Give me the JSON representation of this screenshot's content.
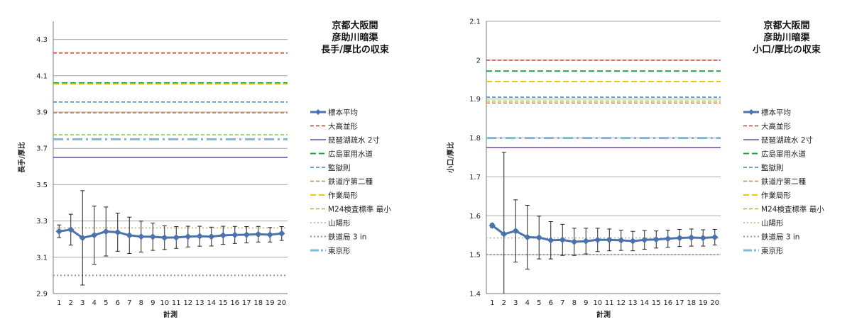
{
  "chart_data": [
    {
      "type": "line",
      "title_lines": [
        "京都大阪間",
        "彦助川暗渠",
        "長手/厚比の収束"
      ],
      "xlabel": "計測",
      "ylabel": "長手/厚比",
      "x": [
        1,
        2,
        3,
        4,
        5,
        6,
        7,
        8,
        9,
        10,
        11,
        12,
        13,
        14,
        15,
        16,
        17,
        18,
        19,
        20
      ],
      "ylim": [
        2.9,
        4.4
      ],
      "yticks": [
        "2.9",
        "3.1",
        "3.3",
        "3.5",
        "3.7",
        "3.9",
        "4.1",
        "4.3"
      ],
      "grid": true,
      "legend_position": "right",
      "series": [
        {
          "name": "標本平均",
          "color": "#4a72ad",
          "style": "marker-line",
          "values": [
            3.243,
            3.252,
            3.207,
            3.222,
            3.242,
            3.238,
            3.221,
            3.214,
            3.213,
            3.208,
            3.209,
            3.214,
            3.216,
            3.214,
            3.221,
            3.223,
            3.224,
            3.227,
            3.224,
            3.231
          ],
          "errors": [
            0.035,
            0.085,
            0.26,
            0.16,
            0.135,
            0.105,
            0.1,
            0.085,
            0.075,
            0.065,
            0.06,
            0.057,
            0.055,
            0.052,
            0.05,
            0.047,
            0.045,
            0.043,
            0.04,
            0.038
          ]
        },
        {
          "name": "大高並形",
          "color": "#c0392b",
          "style": "dashed",
          "value": 4.225
        },
        {
          "name": "琵琶湖疏水 2寸",
          "color": "#6a4a9c",
          "style": "solid",
          "value": 3.65
        },
        {
          "name": "広島軍用水道",
          "color": "#22a045",
          "style": "dashed-long",
          "value": 4.06
        },
        {
          "name": "監獄則",
          "color": "#2e86c1",
          "style": "dashed",
          "value": 3.955
        },
        {
          "name": "鉄道庁第二種",
          "color": "#e67e22",
          "style": "dashed",
          "value": 3.895
        },
        {
          "name": "作業局形",
          "color": "#f1c40f",
          "style": "dashed-long",
          "value": 4.055
        },
        {
          "name": "M24検査標準 最小",
          "color": "#8bc34a",
          "style": "dashed",
          "value": 3.775
        },
        {
          "name": "山陽形",
          "color": "#c8c59a",
          "style": "dotted",
          "value": 3.262
        },
        {
          "name": "鉄道局 3 in",
          "color": "#9b8ec4",
          "style": "dotted",
          "value": 3.0
        },
        {
          "name": "東京形",
          "color": "#7fb9d6",
          "style": "dashdot",
          "value": 3.75
        }
      ]
    },
    {
      "type": "line",
      "title_lines": [
        "京都大阪間",
        "彦助川暗渠",
        "小口/厚比の収束"
      ],
      "xlabel": "計測",
      "ylabel": "小口/厚比",
      "x": [
        1,
        2,
        3,
        4,
        5,
        6,
        7,
        8,
        9,
        10,
        11,
        12,
        13,
        14,
        15,
        16,
        17,
        18,
        19,
        20
      ],
      "ylim": [
        1.4,
        2.1
      ],
      "yticks": [
        "1.4",
        "1.5",
        "1.6",
        "1.7",
        "1.8",
        "1.9",
        "2",
        "2.1"
      ],
      "grid": true,
      "legend_position": "right",
      "series": [
        {
          "name": "標本平均",
          "color": "#4a72ad",
          "style": "marker-line",
          "values": [
            1.575,
            1.553,
            1.561,
            1.545,
            1.544,
            1.537,
            1.538,
            1.533,
            1.535,
            1.538,
            1.538,
            1.537,
            1.535,
            1.538,
            1.539,
            1.541,
            1.543,
            1.544,
            1.543,
            1.545
          ],
          "errors": [
            0.005,
            0.21,
            0.08,
            0.082,
            0.055,
            0.048,
            0.04,
            0.035,
            0.033,
            0.03,
            0.028,
            0.026,
            0.025,
            0.024,
            0.022,
            0.022,
            0.022,
            0.022,
            0.021,
            0.02
          ]
        },
        {
          "name": "大高並形",
          "color": "#c0392b",
          "style": "dashed",
          "value": 2.0
        },
        {
          "name": "琵琶湖疏水 2寸",
          "color": "#6a4a9c",
          "style": "solid",
          "value": 1.775
        },
        {
          "name": "広島軍用水道",
          "color": "#22a045",
          "style": "dashed-long",
          "value": 1.972
        },
        {
          "name": "監獄則",
          "color": "#2e86c1",
          "style": "dashed",
          "value": 1.905
        },
        {
          "name": "鉄道庁第二種",
          "color": "#e67e22",
          "style": "dashed",
          "value": 1.89
        },
        {
          "name": "作業局形",
          "color": "#f1c40f",
          "style": "dashed-long",
          "value": 1.945
        },
        {
          "name": "M24検査標準 最小",
          "color": "#8bc34a",
          "style": "dashed",
          "value": 1.895
        },
        {
          "name": "山陽形",
          "color": "#c8c59a",
          "style": "dotted",
          "value": 1.543
        },
        {
          "name": "鉄道局 3 in",
          "color": "#9b8ec4",
          "style": "dotted",
          "value": 1.5
        },
        {
          "name": "東京形",
          "color": "#7fb9d6",
          "style": "dashdot",
          "value": 1.8
        }
      ]
    }
  ]
}
